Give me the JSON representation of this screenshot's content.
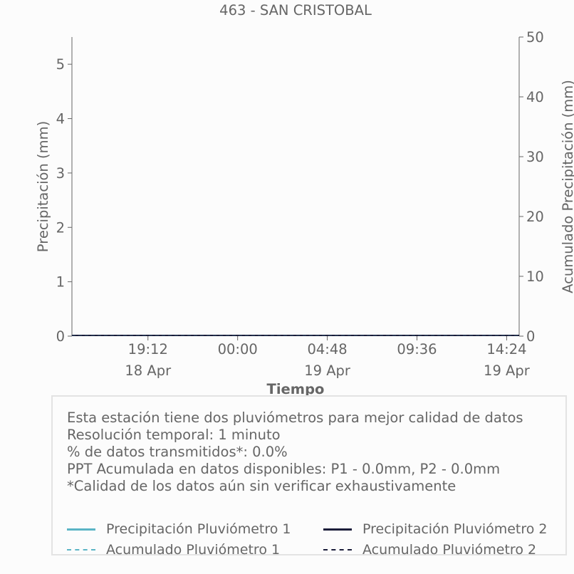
{
  "chart_data": {
    "type": "line",
    "title": "463 - SAN CRISTOBAL",
    "xlabel": "Tiempo",
    "ylabel": "Precipitación (mm)",
    "y2label": "Acumulado Precipitación (mm)",
    "ylim": [
      0,
      5.5
    ],
    "y2lim": [
      0,
      50
    ],
    "yticks": [
      "0",
      "1",
      "2",
      "3",
      "4",
      "5"
    ],
    "y2ticks": [
      "0",
      "10",
      "20",
      "30",
      "40",
      "50"
    ],
    "xticks": [
      {
        "time": "19:12",
        "date": "18 Apr"
      },
      {
        "time": "00:00",
        "date": ""
      },
      {
        "time": "04:48",
        "date": "19 Apr"
      },
      {
        "time": "09:36",
        "date": ""
      },
      {
        "time": "14:24",
        "date": "19 Apr"
      }
    ],
    "series": [
      {
        "name": "Precipitación Pluviómetro 1",
        "color": "#5ab4c5",
        "style": "solid",
        "values": [
          0,
          0
        ]
      },
      {
        "name": "Precipitación Pluviómetro 2",
        "color": "#1b1d3a",
        "style": "solid",
        "values": [
          0,
          0
        ]
      },
      {
        "name": "Acumulado Pluviómetro 1",
        "color": "#5ab4c5",
        "style": "dashed",
        "values": [
          0,
          0
        ]
      },
      {
        "name": "Acumulado Pluviómetro 2",
        "color": "#1b1d3a",
        "style": "dashed",
        "values": [
          0,
          0
        ]
      }
    ],
    "grid": false,
    "legend": "bottom"
  },
  "info": {
    "lines": [
      "Esta estación tiene dos pluviómetros para mejor calidad de datos",
      "Resolución temporal: 1 minuto",
      "% de datos transmitidos*: 0.0%",
      "PPT Acumulada en datos disponibles: P1 - 0.0mm, P2 - 0.0mm",
      "*Calidad de los datos aún sin verificar exhaustivamente"
    ]
  }
}
